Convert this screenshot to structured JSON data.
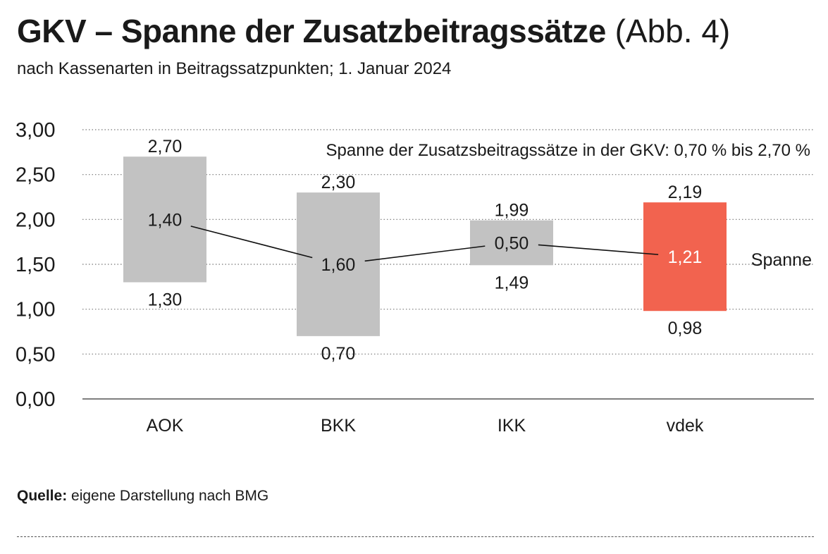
{
  "header": {
    "title_bold": "GKV – Spanne der Zusatzbeitragssätze",
    "title_light": "(Abb. 4)",
    "subtitle": "nach Kassenarten in Beitragssatzpunkten; 1. Januar 2024"
  },
  "chart_data": {
    "type": "bar",
    "subtype": "floating-range",
    "categories": [
      "AOK",
      "BKK",
      "IKK",
      "vdek"
    ],
    "series": [
      {
        "values": [
          {
            "category": "AOK",
            "min": 1.3,
            "max": 2.7,
            "range": 1.4,
            "min_label": "1,30",
            "max_label": "2,70",
            "range_label": "1,40"
          },
          {
            "category": "BKK",
            "min": 0.7,
            "max": 2.3,
            "range": 1.6,
            "min_label": "0,70",
            "max_label": "2,30",
            "range_label": "1,60"
          },
          {
            "category": "IKK",
            "min": 1.49,
            "max": 1.99,
            "range": 0.5,
            "min_label": "1,49",
            "max_label": "1,99",
            "range_label": "0,50"
          },
          {
            "category": "vdek",
            "min": 0.98,
            "max": 2.19,
            "range": 1.21,
            "min_label": "0,98",
            "max_label": "2,19",
            "range_label": "1,21"
          }
        ]
      }
    ],
    "ylim": [
      0,
      3.0
    ],
    "yticks": [
      0,
      0.5,
      1.0,
      1.5,
      2.0,
      2.5,
      3.0
    ],
    "ytick_labels": [
      "0,00",
      "0,50",
      "1,00",
      "1,50",
      "2,00",
      "2,50",
      "3,00"
    ],
    "grid": true,
    "annotation": "Spanne der Zusatzsbeitragssätze in der GKV: 0,70 % bis 2,70 %",
    "line_label": "Spanne",
    "colors": {
      "bar": "#c2c2c2",
      "highlight_bar": "#f2634f",
      "highlight_text": "#ffffff",
      "line": "#111111",
      "grid": "#777777"
    },
    "highlight_category": "vdek"
  },
  "footer": {
    "source_label": "Quelle:",
    "source_text": "eigene Darstellung nach BMG"
  }
}
